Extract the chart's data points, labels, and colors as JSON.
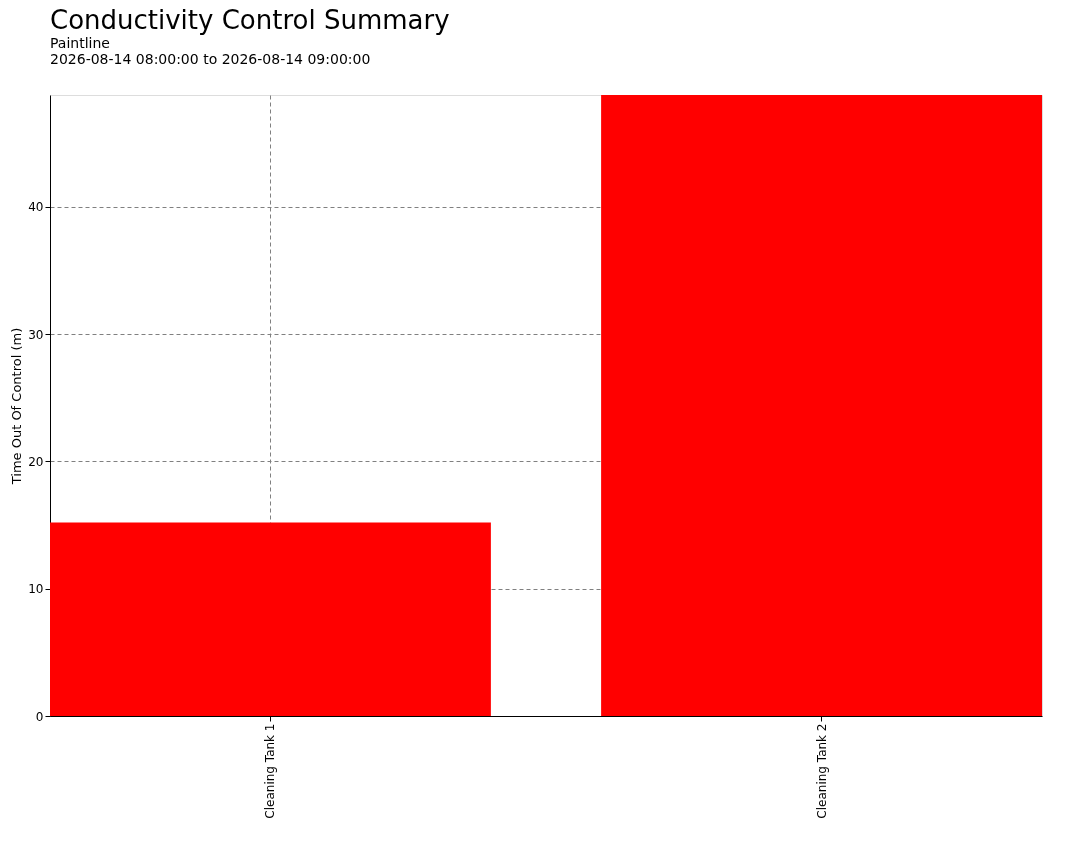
{
  "chart_data": {
    "type": "bar",
    "title": "Conductivity Control Summary",
    "subtitle": "Paintline",
    "annotations": [
      "2026-08-14 08:00:00 to 2026-08-14 09:00:00"
    ],
    "ylabel": "Time Out Of Control (m)",
    "categories": [
      "Cleaning Tank 1",
      "Cleaning Tank 2"
    ],
    "values": [
      15.2,
      48.8
    ],
    "color": "#ff0000",
    "ylim": [
      0,
      48.8
    ],
    "yticks": [
      0,
      10,
      20,
      30,
      40
    ],
    "grid": true
  }
}
